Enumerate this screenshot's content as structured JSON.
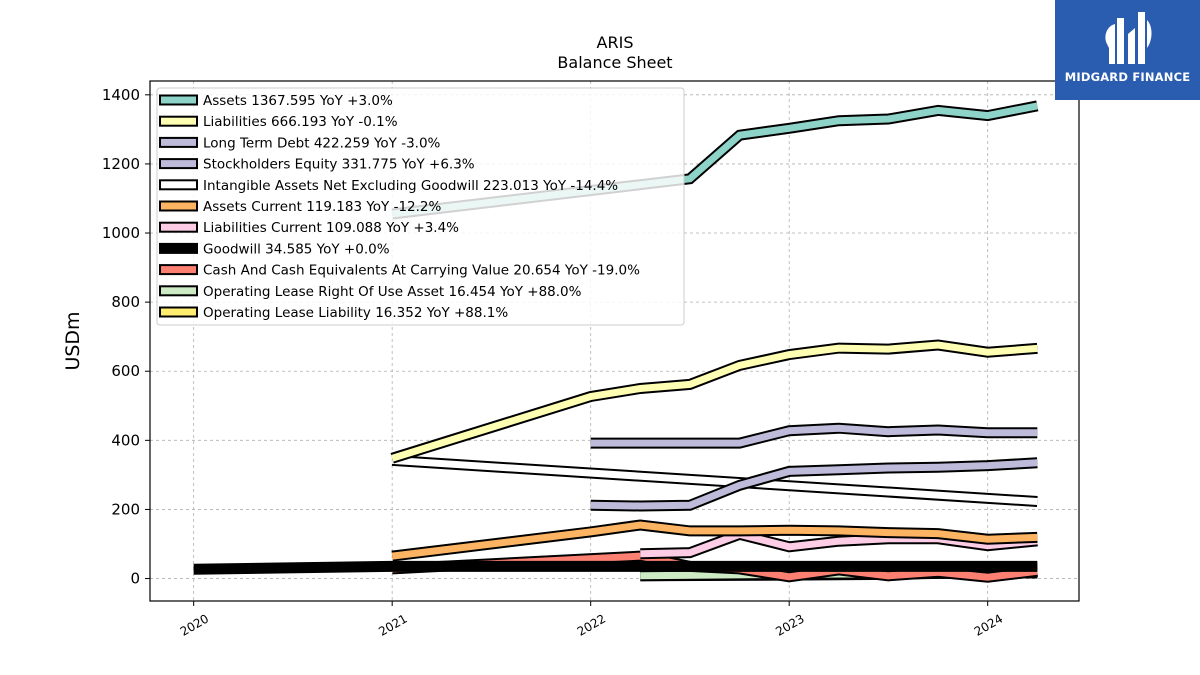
{
  "brand": {
    "name": "MIDGARD FINANCE",
    "bg_color": "#2a5db0"
  },
  "chart_data": {
    "type": "line",
    "title": "ARIS",
    "subtitle": "Balance  Sheet",
    "ylabel": "USDm",
    "xlabel": "",
    "ylim": [
      -65,
      1440
    ],
    "xlim": [
      2019.78,
      2024.46
    ],
    "yticks": [
      0,
      200,
      400,
      600,
      800,
      1000,
      1200,
      1400
    ],
    "xticks": [
      2020,
      2021,
      2022,
      2023,
      2024
    ],
    "xtick_labels": [
      "2020",
      "2021",
      "2022",
      "2023",
      "2024"
    ],
    "grid": true,
    "legend_position": "top-left",
    "series": [
      {
        "name": "Assets",
        "label": "Assets  1367.595 YoY +3.0%",
        "color": "#8dd3c7",
        "x": [
          2021.0,
          2022.25,
          2022.5,
          2022.75,
          2023.0,
          2023.25,
          2023.5,
          2023.75,
          2024.0,
          2024.25
        ],
        "y": [
          1055,
          1140,
          1157,
          1283,
          1303,
          1325,
          1330,
          1355,
          1340,
          1368
        ]
      },
      {
        "name": "Liabilities",
        "label": "Liabilities  666.193 YoY -0.1%",
        "color": "#ffffb3",
        "x": [
          2021.0,
          2022.0,
          2022.25,
          2022.5,
          2022.75,
          2023.0,
          2023.25,
          2023.5,
          2023.75,
          2024.0,
          2024.25
        ],
        "y": [
          348,
          527,
          550,
          562,
          617,
          648,
          667,
          664,
          676,
          655,
          666
        ]
      },
      {
        "name": "Long Term Debt",
        "label": "Long Term Debt  422.259 YoY -3.0%",
        "color": "#bebada",
        "x": [
          2022.0,
          2022.25,
          2022.5,
          2022.75,
          2023.0,
          2023.25,
          2023.5,
          2023.75,
          2024.0,
          2024.25
        ],
        "y": [
          392,
          392,
          392,
          392,
          428,
          435,
          425,
          430,
          422,
          422
        ]
      },
      {
        "name": "Stockholders Equity",
        "label": "Stockholders Equity  331.775 YoY +6.3%",
        "color": "#bebada",
        "x": [
          2022.0,
          2022.25,
          2022.5,
          2022.75,
          2023.0,
          2023.25,
          2023.5,
          2023.75,
          2024.0,
          2024.25
        ],
        "y": [
          212,
          210,
          212,
          270,
          310,
          315,
          320,
          322,
          327,
          335
        ]
      },
      {
        "name": "Intangible Assets Net Excluding Goodwill",
        "label": "Intangible Assets Net Excluding Goodwill  223.013 YoY -14.4%",
        "color": "#ffffff",
        "x": [
          2021.0,
          2024.25
        ],
        "y": [
          342,
          223
        ]
      },
      {
        "name": "Assets Current",
        "label": "Assets Current  119.183 YoY -12.2%",
        "color": "#fdb462",
        "x": [
          2021.0,
          2022.0,
          2022.25,
          2022.5,
          2022.75,
          2023.0,
          2023.25,
          2023.5,
          2023.75,
          2024.0,
          2024.25
        ],
        "y": [
          65,
          135,
          155,
          138,
          138,
          140,
          138,
          133,
          130,
          114,
          119
        ]
      },
      {
        "name": "Liabilities Current",
        "label": "Liabilities Current  109.088 YoY +3.4%",
        "color": "#fccde5",
        "x": [
          2022.25,
          2022.5,
          2022.75,
          2023.0,
          2023.25,
          2023.5,
          2023.75,
          2024.0,
          2024.25
        ],
        "y": [
          72,
          75,
          128,
          92,
          108,
          115,
          115,
          95,
          109
        ]
      },
      {
        "name": "Goodwill",
        "label": "Goodwill  34.585 YoY +0.0%",
        "color": "#000000",
        "x": [
          2020.0,
          2021.0,
          2022.0,
          2022.5,
          2023.0,
          2023.5,
          2024.0,
          2024.25
        ],
        "y": [
          27,
          35,
          35,
          35,
          35,
          35,
          35,
          35
        ]
      },
      {
        "name": "Cash And Cash Equivalents At Carrying Value",
        "label": "Cash And Cash Equivalents At Carrying Value  20.654 YoY -19.0%",
        "color": "#fb8072",
        "x": [
          2021.0,
          2022.25,
          2022.5,
          2022.75,
          2023.0,
          2023.25,
          2023.5,
          2023.75,
          2024.0,
          2024.25
        ],
        "y": [
          28,
          65,
          35,
          28,
          5,
          25,
          8,
          18,
          4,
          21
        ]
      },
      {
        "name": "Operating Lease Right Of Use Asset",
        "label": "Operating Lease Right Of Use Asset  16.454 YoY +88.0%",
        "color": "#ccebc5",
        "x": [
          2022.25,
          2023.0,
          2023.5,
          2023.75,
          2024.0,
          2024.25
        ],
        "y": [
          8,
          12,
          14,
          15,
          16,
          16
        ]
      },
      {
        "name": "Operating Lease Liability",
        "label": "Operating Lease Liability  16.352 YoY +88.1%",
        "color": "#ffed6f",
        "x": [
          2022.25,
          2023.0,
          2023.5,
          2023.75,
          2024.0,
          2024.25
        ],
        "y": [
          8,
          10,
          12,
          15,
          16,
          16
        ]
      }
    ]
  }
}
